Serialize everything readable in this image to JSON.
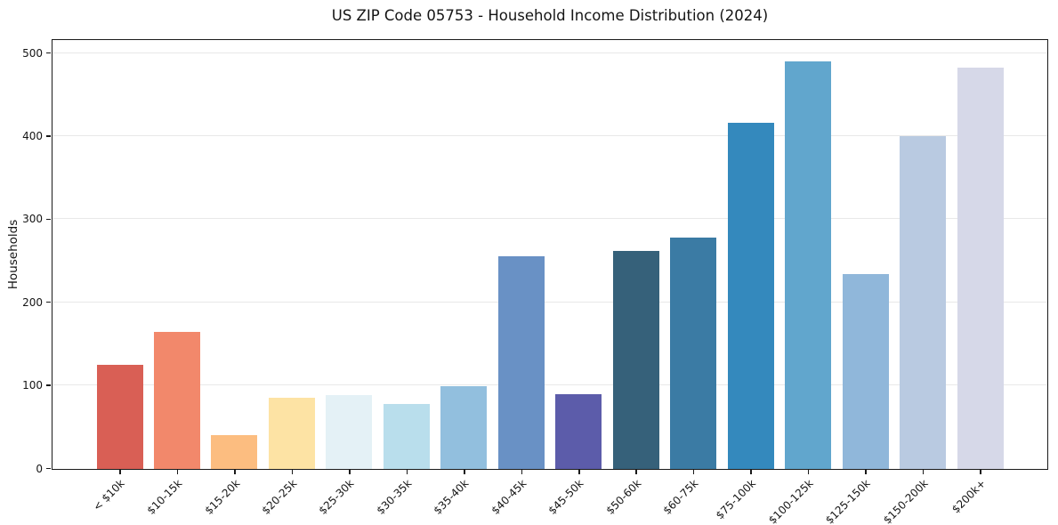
{
  "chart_data": {
    "type": "bar",
    "title": "US ZIP Code 05753 - Household Income Distribution (2024)",
    "xlabel": "",
    "ylabel": "Households",
    "categories": [
      "< $10k",
      "$10-15k",
      "$15-20k",
      "$20-25k",
      "$25-30k",
      "$30-35k",
      "$35-40k",
      "$40-45k",
      "$45-50k",
      "$50-60k",
      "$60-75k",
      "$75-100k",
      "$100-125k",
      "$125-150k",
      "$150-200k",
      "$200k+"
    ],
    "values": [
      125,
      165,
      41,
      86,
      89,
      78,
      100,
      256,
      90,
      262,
      278,
      416,
      490,
      235,
      400,
      483
    ],
    "bar_colors": [
      "#d95f55",
      "#f2886b",
      "#fcbd80",
      "#fde3a4",
      "#e4f1f6",
      "#b9deec",
      "#92bfde",
      "#6991c5",
      "#5c5caa",
      "#36617a",
      "#3b7ba4",
      "#3489bd",
      "#61a6cd",
      "#90b7da",
      "#b9cae1",
      "#d6d8e8"
    ],
    "yticks": [
      0,
      100,
      200,
      300,
      400,
      500
    ],
    "ylim": [
      0,
      515
    ],
    "grid": "horizontal",
    "grid_color": "#e8e8e8",
    "spine_color": "#1a1a1a",
    "background_color": "#ffffff",
    "legend": "none"
  }
}
